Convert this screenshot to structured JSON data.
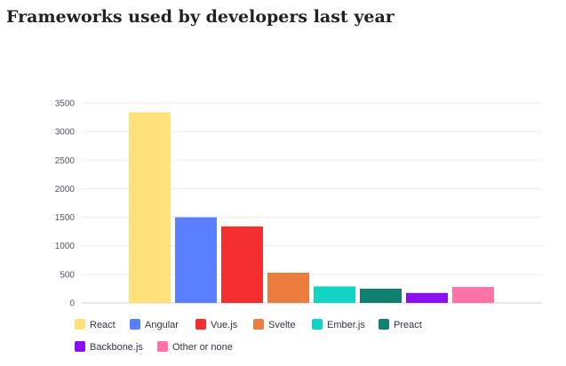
{
  "chart_data": {
    "type": "bar",
    "title": "Frameworks used by developers last year",
    "xlabel": "",
    "ylabel": "",
    "ylim": [
      0,
      3500
    ],
    "yticks": [
      0,
      500,
      1000,
      1500,
      2000,
      2500,
      3000,
      3500
    ],
    "grid": true,
    "legend_position": "bottom",
    "series": [
      {
        "name": "React",
        "value": 3340,
        "color": "#FFE17A"
      },
      {
        "name": "Angular",
        "value": 1500,
        "color": "#5A7FFF"
      },
      {
        "name": "Vue.js",
        "value": 1340,
        "color": "#F42E2E"
      },
      {
        "name": "Svelte",
        "value": 530,
        "color": "#EB7D3F"
      },
      {
        "name": "Ember.js",
        "value": 290,
        "color": "#12D4C2"
      },
      {
        "name": "Preact",
        "value": 250,
        "color": "#12806E"
      },
      {
        "name": "Backbone.js",
        "value": 175,
        "color": "#8B10F0"
      },
      {
        "name": "Other or none",
        "value": 280,
        "color": "#FF73A6"
      }
    ]
  }
}
